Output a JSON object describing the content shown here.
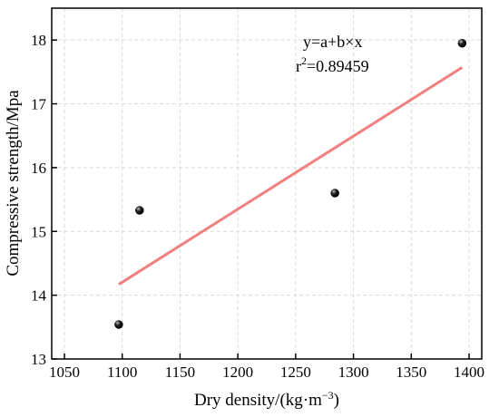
{
  "chart_data": {
    "type": "scatter",
    "xlabel_text": "Dry density/(kg·m",
    "xlabel_sup": "−3",
    "xlabel_close": ")",
    "ylabel": "Compressive strength/Mpa",
    "xlim": [
      1050,
      1400
    ],
    "ylim": [
      13,
      18.5
    ],
    "xticks": [
      1050,
      1100,
      1150,
      1200,
      1250,
      1300,
      1350,
      1400
    ],
    "yticks": [
      13,
      14,
      15,
      16,
      17,
      18
    ],
    "grid": true,
    "points": [
      {
        "x": 1097,
        "y": 13.54
      },
      {
        "x": 1115,
        "y": 15.33
      },
      {
        "x": 1284,
        "y": 15.6
      },
      {
        "x": 1394,
        "y": 17.95
      }
    ],
    "fit_line": {
      "x": [
        1097,
        1394
      ],
      "y": [
        14.17,
        17.57
      ],
      "color": "#f08080"
    },
    "annotation": {
      "equation": "y=a+b×x",
      "r2_base": "r",
      "r2_sup": "2",
      "r2_value": "=0.89459"
    },
    "point_color": "#000000"
  }
}
